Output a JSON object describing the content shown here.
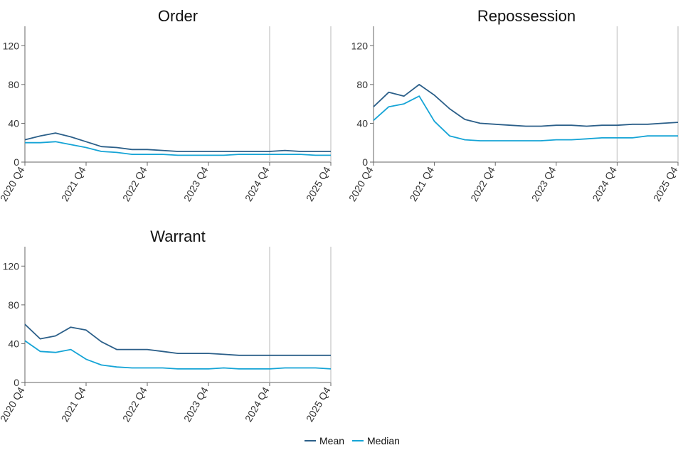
{
  "chart_data": [
    {
      "type": "line",
      "title": "Order",
      "xlabel": "",
      "ylabel": "",
      "ylim": [
        0,
        140
      ],
      "yticks": [
        0,
        40,
        80,
        120
      ],
      "x_tick_labels": [
        "2020 Q4",
        "2021 Q4",
        "2022 Q4",
        "2023 Q4",
        "2024 Q4",
        "2025 Q4"
      ],
      "x": [
        "2020 Q4",
        "2021 Q1",
        "2021 Q2",
        "2021 Q3",
        "2021 Q4",
        "2022 Q1",
        "2022 Q2",
        "2022 Q3",
        "2022 Q4",
        "2023 Q1",
        "2023 Q2",
        "2023 Q3",
        "2023 Q4",
        "2024 Q1",
        "2024 Q2",
        "2024 Q3",
        "2024 Q4",
        "2025 Q1",
        "2025 Q2",
        "2025 Q3",
        "2025 Q4"
      ],
      "reference_line": "2024 Q4",
      "series": [
        {
          "name": "Mean",
          "values": [
            23,
            27,
            30,
            26,
            21,
            16,
            15,
            13,
            13,
            12,
            11,
            11,
            11,
            11,
            11,
            11,
            11,
            12,
            11,
            11,
            11
          ]
        },
        {
          "name": "Median",
          "values": [
            20,
            20,
            21,
            18,
            15,
            11,
            10,
            8,
            8,
            8,
            7,
            7,
            7,
            7,
            8,
            8,
            8,
            8,
            8,
            7,
            7
          ]
        }
      ]
    },
    {
      "type": "line",
      "title": "Repossession",
      "xlabel": "",
      "ylabel": "",
      "ylim": [
        0,
        140
      ],
      "yticks": [
        0,
        40,
        80,
        120
      ],
      "x_tick_labels": [
        "2020 Q4",
        "2021 Q4",
        "2022 Q4",
        "2023 Q4",
        "2024 Q4",
        "2025 Q4"
      ],
      "x": [
        "2020 Q4",
        "2021 Q1",
        "2021 Q2",
        "2021 Q3",
        "2021 Q4",
        "2022 Q1",
        "2022 Q2",
        "2022 Q3",
        "2022 Q4",
        "2023 Q1",
        "2023 Q2",
        "2023 Q3",
        "2023 Q4",
        "2024 Q1",
        "2024 Q2",
        "2024 Q3",
        "2024 Q4",
        "2025 Q1",
        "2025 Q2",
        "2025 Q3",
        "2025 Q4"
      ],
      "reference_line": "2024 Q4",
      "series": [
        {
          "name": "Mean",
          "values": [
            57,
            72,
            68,
            80,
            69,
            55,
            44,
            40,
            39,
            38,
            37,
            37,
            38,
            38,
            37,
            38,
            38,
            39,
            39,
            40,
            41
          ]
        },
        {
          "name": "Median",
          "values": [
            43,
            57,
            60,
            68,
            42,
            27,
            23,
            22,
            22,
            22,
            22,
            22,
            23,
            23,
            24,
            25,
            25,
            25,
            27,
            27,
            27
          ]
        }
      ]
    },
    {
      "type": "line",
      "title": "Warrant",
      "xlabel": "",
      "ylabel": "",
      "ylim": [
        0,
        140
      ],
      "yticks": [
        0,
        40,
        80,
        120
      ],
      "x_tick_labels": [
        "2020 Q4",
        "2021 Q4",
        "2022 Q4",
        "2023 Q4",
        "2024 Q4",
        "2025 Q4"
      ],
      "x": [
        "2020 Q4",
        "2021 Q1",
        "2021 Q2",
        "2021 Q3",
        "2021 Q4",
        "2022 Q1",
        "2022 Q2",
        "2022 Q3",
        "2022 Q4",
        "2023 Q1",
        "2023 Q2",
        "2023 Q3",
        "2023 Q4",
        "2024 Q1",
        "2024 Q2",
        "2024 Q3",
        "2024 Q4",
        "2025 Q1",
        "2025 Q2",
        "2025 Q3",
        "2025 Q4"
      ],
      "reference_line": "2024 Q4",
      "series": [
        {
          "name": "Mean",
          "values": [
            60,
            45,
            48,
            57,
            54,
            42,
            34,
            34,
            34,
            32,
            30,
            30,
            30,
            29,
            28,
            28,
            28,
            28,
            28,
            28,
            28
          ]
        },
        {
          "name": "Median",
          "values": [
            43,
            32,
            31,
            34,
            24,
            18,
            16,
            15,
            15,
            15,
            14,
            14,
            14,
            15,
            14,
            14,
            14,
            15,
            15,
            15,
            14
          ]
        }
      ]
    }
  ],
  "legend": {
    "placement": "bottom-center",
    "items": [
      {
        "label": "Mean",
        "color": "#2b5f89"
      },
      {
        "label": "Median",
        "color": "#15a4d6"
      }
    ]
  },
  "colors": {
    "Mean": "#2b5f89",
    "Median": "#15a4d6",
    "reference_line": "#c9c9c9",
    "axis": "#666666"
  }
}
